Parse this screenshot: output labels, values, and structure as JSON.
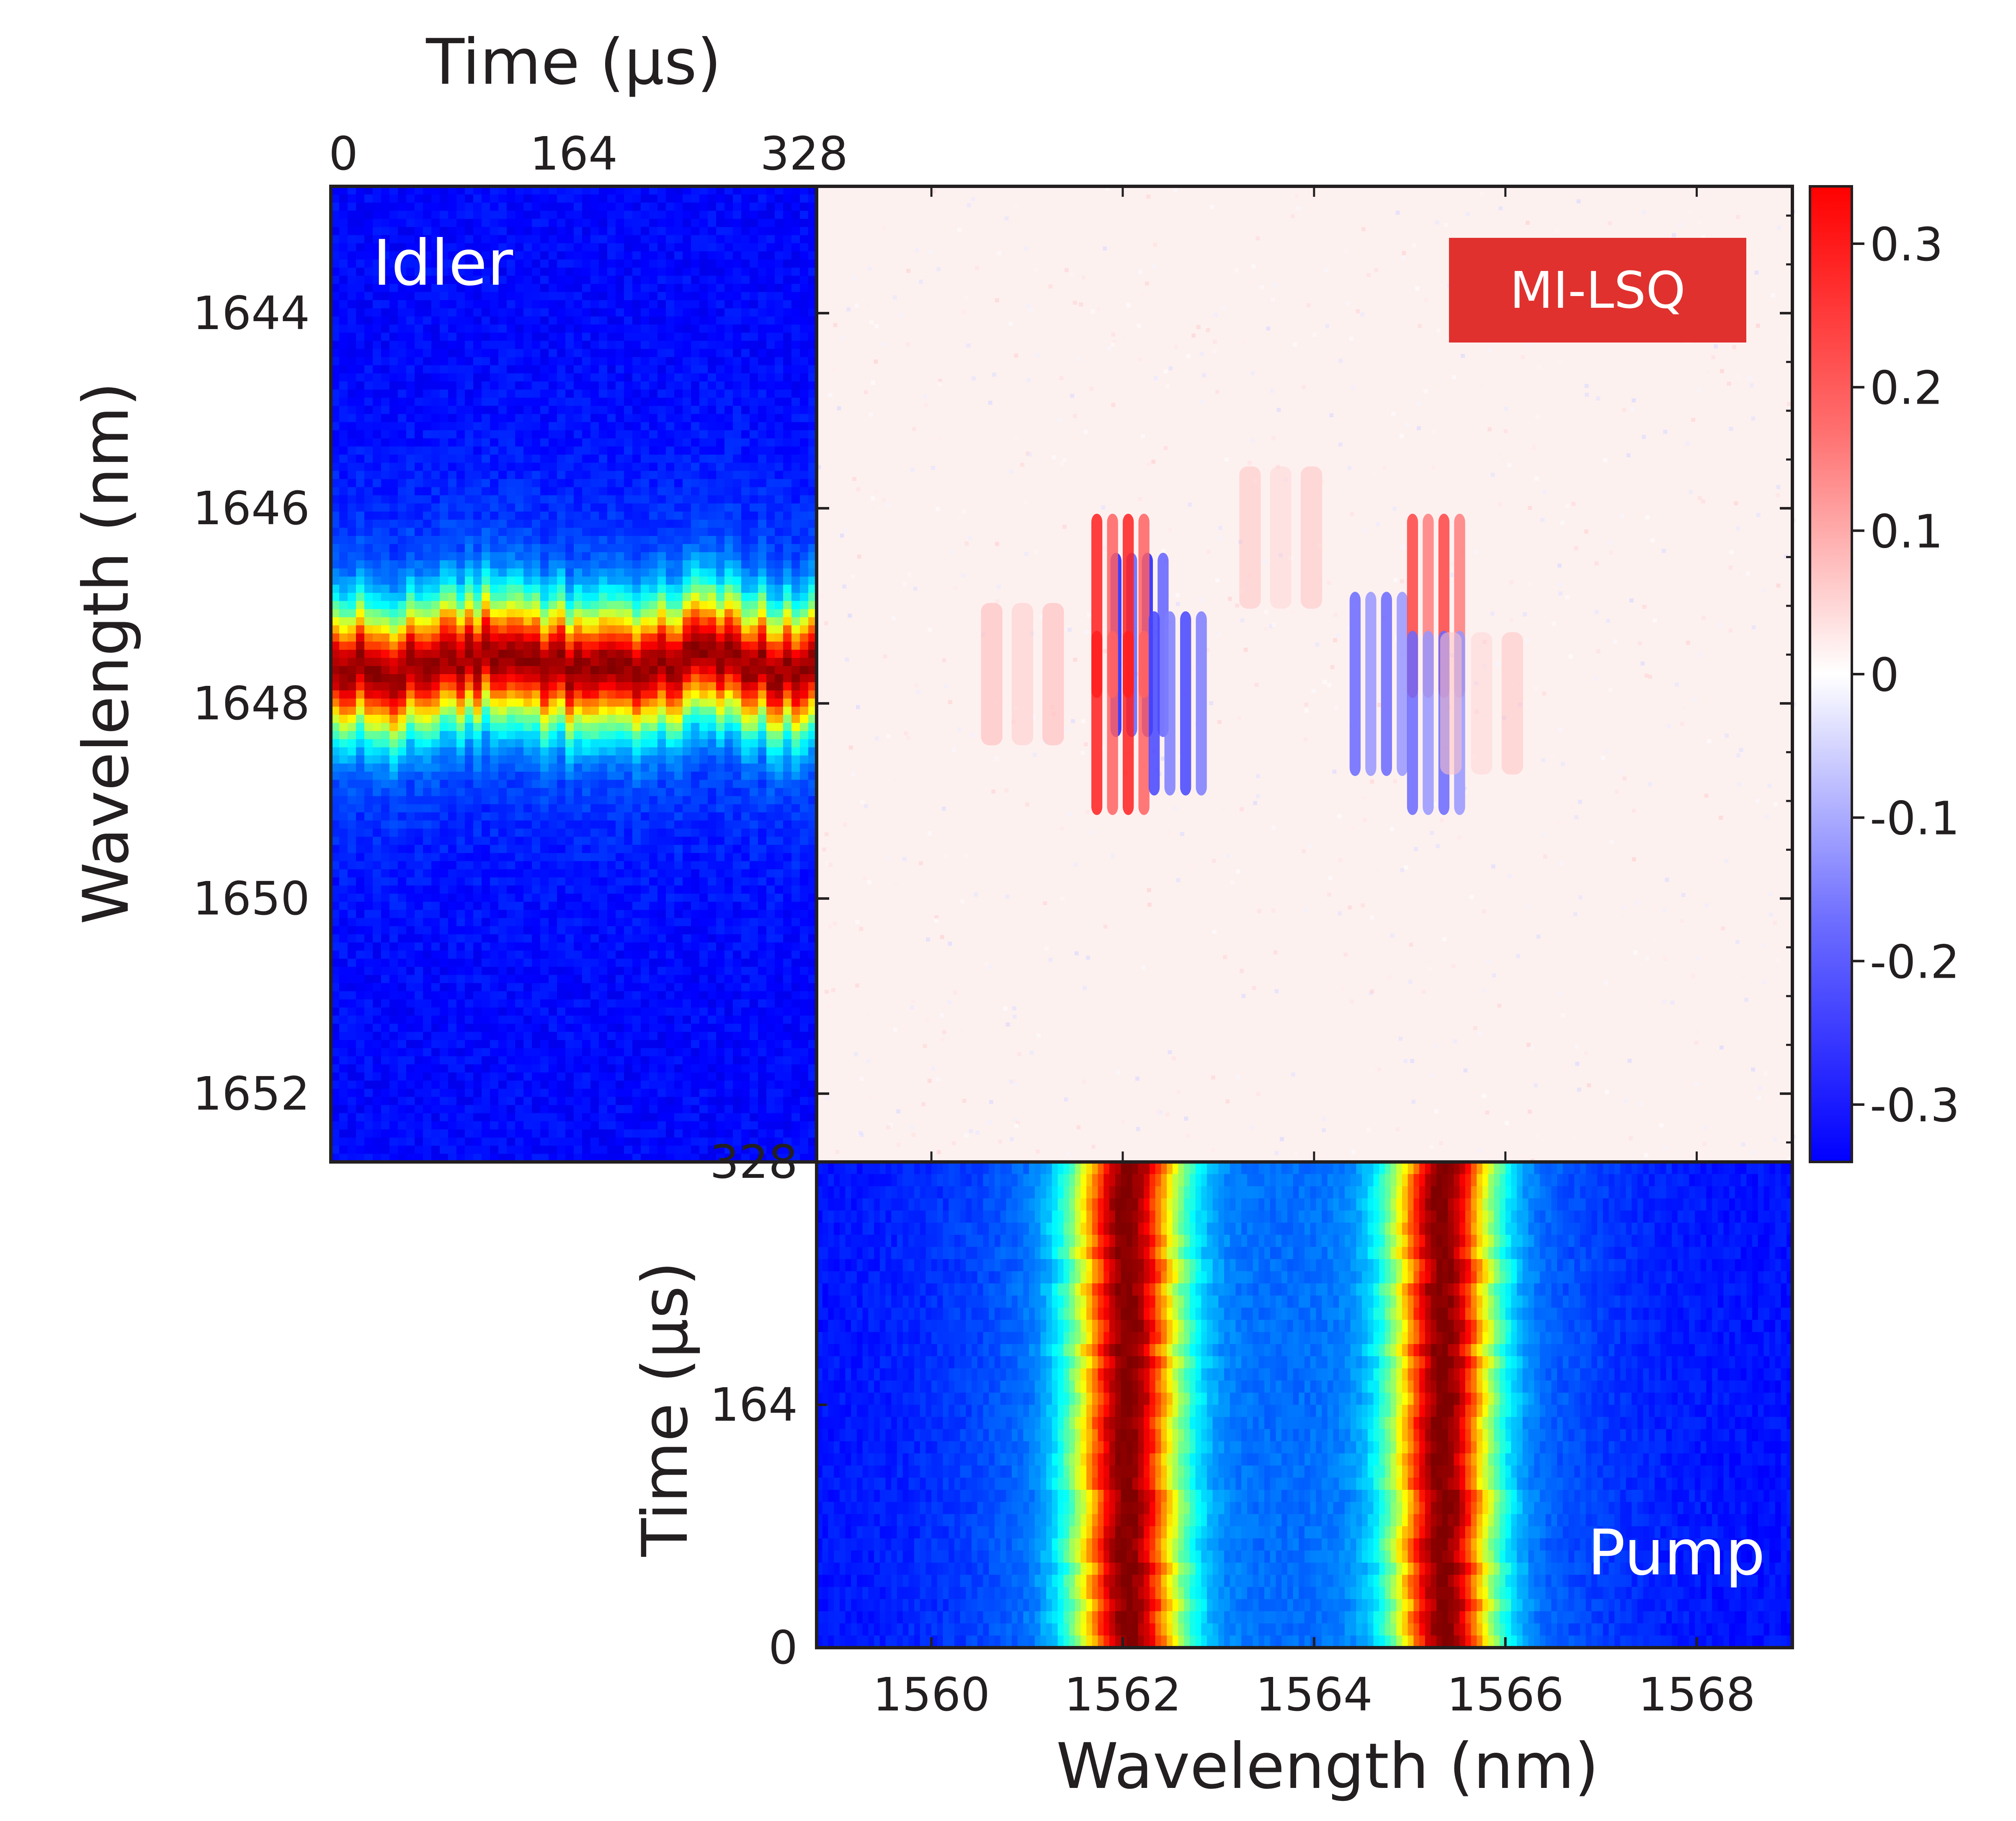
{
  "chart_data": [
    {
      "type": "heatmap",
      "panel": "Idler",
      "label": "Idler",
      "xlabel": "Time (μs)",
      "ylabel": "Wavelength (nm)",
      "xlim": [
        0,
        328
      ],
      "ylim": [
        1642.7,
        1652.7
      ],
      "xticks": [
        "0",
        "164",
        "328"
      ],
      "yticks": [
        "1644",
        "1646",
        "1648",
        "1650",
        "1652"
      ],
      "ytick_values": [
        1644,
        1646,
        1648,
        1650,
        1652
      ],
      "peak_center": 1647.6,
      "peak_width": 0.45,
      "colormap": "jet"
    },
    {
      "type": "heatmap",
      "panel": "correlation",
      "label": "MI-LSQ",
      "label_bg": "#e0312e",
      "xlim": [
        1558.8,
        1569.0
      ],
      "ylim": [
        1642.7,
        1652.7
      ],
      "colorbar": {
        "range": [
          -0.34,
          0.34
        ],
        "ticks": [
          "0.3",
          "0.2",
          "0.1",
          "0",
          "-0.1",
          "-0.2",
          "-0.3"
        ],
        "tick_values": [
          0.3,
          0.2,
          0.1,
          0,
          -0.1,
          -0.2,
          -0.3
        ],
        "colormap": "blue-white-red"
      },
      "features": [
        {
          "x": 1562.2,
          "y": 1647.4,
          "value": -0.3
        },
        {
          "x": 1562.0,
          "y": 1647.0,
          "value": 0.3
        },
        {
          "x": 1562.0,
          "y": 1648.2,
          "value": 0.3
        },
        {
          "x": 1562.6,
          "y": 1648.0,
          "value": -0.25
        },
        {
          "x": 1564.7,
          "y": 1647.8,
          "value": -0.2
        },
        {
          "x": 1565.3,
          "y": 1647.0,
          "value": 0.25
        },
        {
          "x": 1565.3,
          "y": 1648.2,
          "value": -0.2
        },
        {
          "x": 1561.0,
          "y": 1647.7,
          "value": 0.1
        },
        {
          "x": 1563.7,
          "y": 1646.3,
          "value": 0.08
        },
        {
          "x": 1565.8,
          "y": 1648.0,
          "value": 0.08
        }
      ],
      "colors": {
        "red": "#e8231f",
        "blue": "#1a1aff",
        "white": "#ffffff"
      }
    },
    {
      "type": "heatmap",
      "panel": "Pump",
      "label": "Pump",
      "xlabel": "Wavelength (nm)",
      "ylabel": "Time (μs)",
      "xlim": [
        1558.8,
        1569.0
      ],
      "ylim": [
        0,
        328
      ],
      "xticks": [
        "1560",
        "1562",
        "1564",
        "1566",
        "1568"
      ],
      "xtick_values": [
        1560,
        1562,
        1564,
        1566,
        1568
      ],
      "yticks": [
        "0",
        "164",
        "328"
      ],
      "ytick_values": [
        0,
        164,
        328
      ],
      "peaks": [
        {
          "center": 1562.05,
          "width": 0.42
        },
        {
          "center": 1565.35,
          "width": 0.4
        }
      ],
      "colormap": "jet"
    }
  ]
}
